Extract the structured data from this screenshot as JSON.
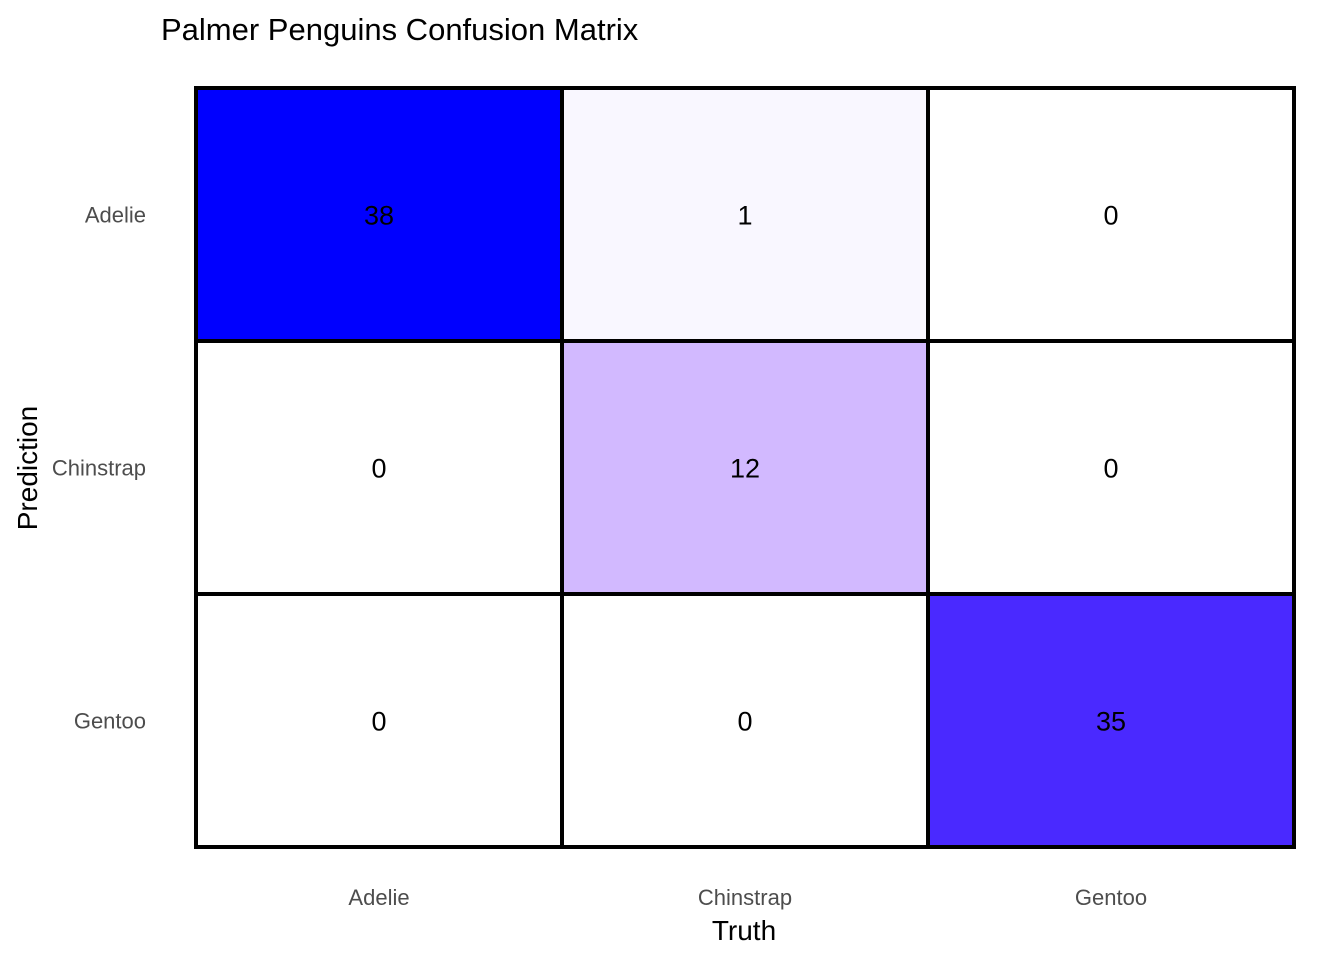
{
  "chart_data": {
    "type": "heatmap",
    "title": "Palmer Penguins Confusion Matrix",
    "xlabel": "Truth",
    "ylabel": "Prediction",
    "x_categories": [
      "Adelie",
      "Chinstrap",
      "Gentoo"
    ],
    "y_categories": [
      "Adelie",
      "Chinstrap",
      "Gentoo"
    ],
    "values": [
      [
        38,
        1,
        0
      ],
      [
        0,
        12,
        0
      ],
      [
        0,
        0,
        35
      ]
    ],
    "color_low": "#ffffff",
    "color_high": "#0000ff",
    "cell_colors": [
      [
        "#0000ff",
        "#f9f7ff",
        "#ffffff"
      ],
      [
        "#ffffff",
        "#d2b9ff",
        "#ffffff"
      ],
      [
        "#ffffff",
        "#ffffff",
        "#4a29ff"
      ]
    ],
    "border_color": "#000000",
    "grid": false,
    "legend": "none"
  }
}
